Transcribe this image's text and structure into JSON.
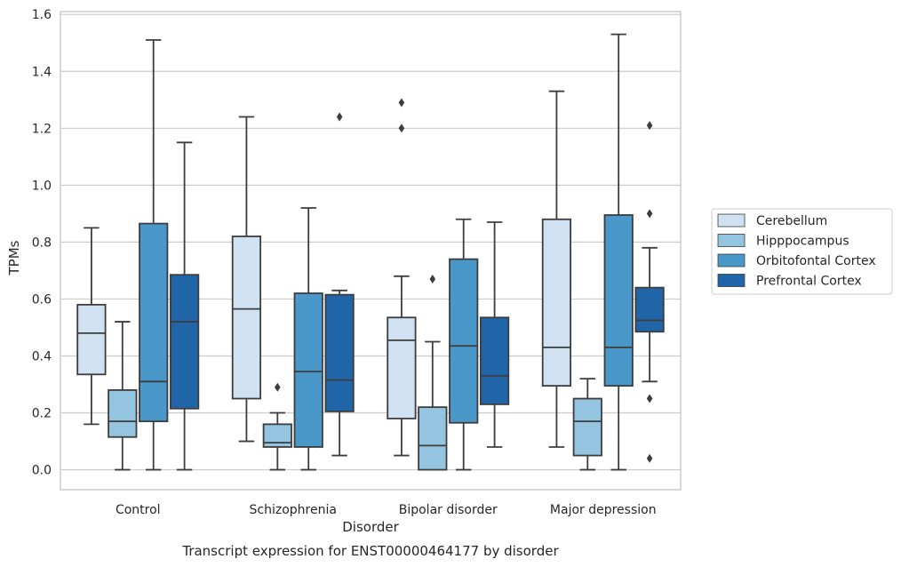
{
  "chart_data": {
    "type": "box",
    "title": "Transcript expression for ENST00000464177 by disorder",
    "xlabel": "Disorder",
    "ylabel": "TPMs",
    "ylim": [
      -0.07,
      1.61
    ],
    "yticks": [
      "0.0",
      "0.2",
      "0.4",
      "0.6",
      "0.8",
      "1.0",
      "1.2",
      "1.4",
      "1.6"
    ],
    "grid": "horizontal",
    "legend_position": "right",
    "categories": [
      "Control",
      "Schizophrenia",
      "Bipolar disorder",
      "Major depression"
    ],
    "series": [
      {
        "name": "Cerebellum",
        "color": "#d0e1f2",
        "boxes": [
          {
            "whisker_low": 0.16,
            "q1": 0.335,
            "median": 0.48,
            "q3": 0.58,
            "whisker_high": 0.85,
            "outliers": []
          },
          {
            "whisker_low": 0.1,
            "q1": 0.25,
            "median": 0.565,
            "q3": 0.82,
            "whisker_high": 1.24,
            "outliers": []
          },
          {
            "whisker_low": 0.05,
            "q1": 0.18,
            "median": 0.455,
            "q3": 0.535,
            "whisker_high": 0.68,
            "outliers": [
              1.2,
              1.29
            ]
          },
          {
            "whisker_low": 0.08,
            "q1": 0.295,
            "median": 0.43,
            "q3": 0.88,
            "whisker_high": 1.33,
            "outliers": []
          }
        ]
      },
      {
        "name": "Hipppocampus",
        "color": "#94c4df",
        "boxes": [
          {
            "whisker_low": 0.0,
            "q1": 0.115,
            "median": 0.17,
            "q3": 0.28,
            "whisker_high": 0.52,
            "outliers": []
          },
          {
            "whisker_low": 0.0,
            "q1": 0.08,
            "median": 0.095,
            "q3": 0.16,
            "whisker_high": 0.2,
            "outliers": [
              0.29
            ]
          },
          {
            "whisker_low": 0.0,
            "q1": 0.0,
            "median": 0.085,
            "q3": 0.22,
            "whisker_high": 0.45,
            "outliers": [
              0.67
            ]
          },
          {
            "whisker_low": 0.0,
            "q1": 0.05,
            "median": 0.17,
            "q3": 0.25,
            "whisker_high": 0.32,
            "outliers": []
          }
        ]
      },
      {
        "name": "Orbitofontal Cortex",
        "color": "#4a98c9",
        "boxes": [
          {
            "whisker_low": 0.0,
            "q1": 0.17,
            "median": 0.31,
            "q3": 0.865,
            "whisker_high": 1.51,
            "outliers": []
          },
          {
            "whisker_low": 0.0,
            "q1": 0.08,
            "median": 0.345,
            "q3": 0.62,
            "whisker_high": 0.92,
            "outliers": []
          },
          {
            "whisker_low": 0.0,
            "q1": 0.165,
            "median": 0.435,
            "q3": 0.74,
            "whisker_high": 0.88,
            "outliers": []
          },
          {
            "whisker_low": 0.0,
            "q1": 0.295,
            "median": 0.43,
            "q3": 0.895,
            "whisker_high": 1.53,
            "outliers": []
          }
        ]
      },
      {
        "name": "Prefrontal Cortex",
        "color": "#2165a9",
        "boxes": [
          {
            "whisker_low": 0.0,
            "q1": 0.215,
            "median": 0.52,
            "q3": 0.685,
            "whisker_high": 1.15,
            "outliers": []
          },
          {
            "whisker_low": 0.05,
            "q1": 0.205,
            "median": 0.315,
            "q3": 0.615,
            "whisker_high": 0.63,
            "outliers": [
              1.24
            ]
          },
          {
            "whisker_low": 0.08,
            "q1": 0.23,
            "median": 0.33,
            "q3": 0.535,
            "whisker_high": 0.87,
            "outliers": []
          },
          {
            "whisker_low": 0.31,
            "q1": 0.485,
            "median": 0.525,
            "q3": 0.64,
            "whisker_high": 0.78,
            "outliers": [
              0.04,
              0.25,
              0.9,
              1.21
            ]
          }
        ]
      }
    ]
  }
}
